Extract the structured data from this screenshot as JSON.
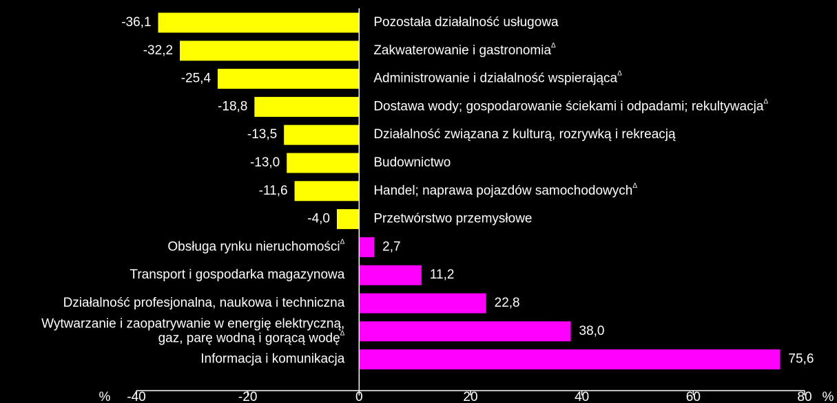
{
  "chart_data": {
    "type": "bar",
    "orientation": "horizontal",
    "categories": [
      "Pozostała działalność usługowa",
      "Zakwaterowanie i gastronomia",
      "Administrowanie i działalność wspierająca",
      "Dostawa wody; gospodarowanie ściekami i odpadami; rekultywacja",
      "Działalność związana z kulturą, rozrywką i rekreacją",
      "Budownictwo",
      "Handel; naprawa pojazdów samochodowych",
      "Przetwórstwo przemysłowe",
      "Obsługa rynku nieruchomości",
      "Transport i gospodarka magazynowa",
      "Działalność profesjonalna, naukowa i techniczna",
      [
        "Wytwarzanie i zaopatrywanie w energię elektryczną,",
        "gaz, parę wodną i gorącą wodę"
      ],
      "Informacja i komunikacja"
    ],
    "category_marks": [
      null,
      "Δ",
      "Δ",
      "Δ",
      null,
      null,
      "Δ",
      null,
      "Δ",
      null,
      null,
      "Δ",
      null
    ],
    "values": [
      -36.1,
      -32.2,
      -25.4,
      -18.8,
      -13.5,
      -13.0,
      -11.6,
      -4.0,
      2.7,
      11.2,
      22.8,
      38.0,
      75.6
    ],
    "value_labels": [
      "-36,1",
      "-32,2",
      "-25,4",
      "-18,8",
      "-13,5",
      "-13,0",
      "-11,6",
      "-4,0",
      "2,7",
      "11,2",
      "22,8",
      "38,0",
      "75,6"
    ],
    "negative_color": "#ffff00",
    "positive_color": "#ff00ff",
    "xlim": [
      -40,
      80
    ],
    "xticks": [
      -40,
      -20,
      0,
      20,
      40,
      60,
      80
    ],
    "axis_label_left": "%",
    "axis_label_right": "%"
  }
}
